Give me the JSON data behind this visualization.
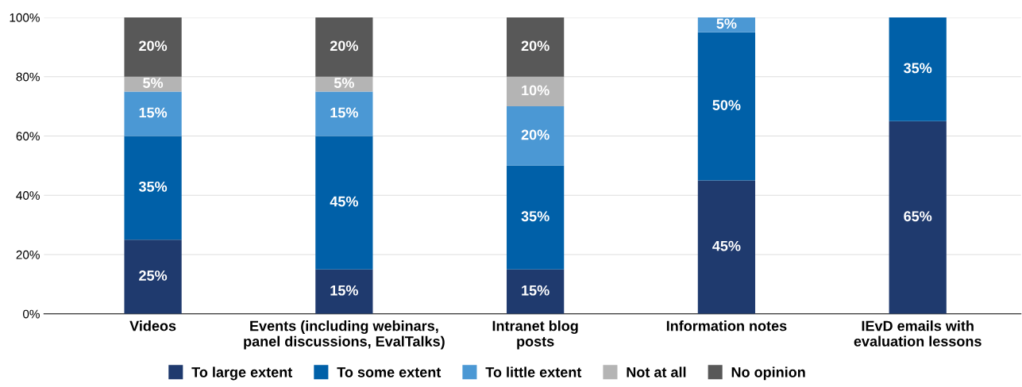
{
  "chart_data": {
    "type": "bar",
    "stacked": true,
    "categories": [
      "Videos",
      "Events (including webinars,\npanel discussions, EvalTalks)",
      "Intranet blog\nposts",
      "Information notes",
      "IEvD emails with\nevaluation lessons"
    ],
    "series": [
      {
        "name": "To large extent",
        "color": "#1f3a6e",
        "values": [
          25,
          15,
          15,
          45,
          65
        ],
        "value_labels": [
          "25%",
          "15%",
          "15%",
          "45%",
          "65%"
        ]
      },
      {
        "name": "To some extent",
        "color": "#0060a8",
        "values": [
          35,
          45,
          35,
          50,
          35
        ],
        "value_labels": [
          "35%",
          "45%",
          "35%",
          "50%",
          "35%"
        ]
      },
      {
        "name": "To little extent",
        "color": "#4b98d4",
        "values": [
          15,
          15,
          20,
          5,
          0
        ],
        "value_labels": [
          "15%",
          "15%",
          "20%",
          "5%",
          null
        ]
      },
      {
        "name": "Not at all",
        "color": "#b4b4b4",
        "values": [
          5,
          5,
          10,
          0,
          0
        ],
        "value_labels": [
          "5%",
          "5%",
          "10%",
          null,
          null
        ]
      },
      {
        "name": "No opinion",
        "color": "#585858",
        "values": [
          20,
          20,
          20,
          0,
          0
        ],
        "value_labels": [
          "20%",
          "20%",
          "20%",
          null,
          null
        ]
      }
    ],
    "ylim": [
      0,
      100
    ],
    "yticks": [
      {
        "value": 0,
        "label": "0%"
      },
      {
        "value": 20,
        "label": "20%"
      },
      {
        "value": 40,
        "label": "40%"
      },
      {
        "value": 60,
        "label": "60%"
      },
      {
        "value": 80,
        "label": "80%"
      },
      {
        "value": 100,
        "label": "100%"
      }
    ],
    "grid": "y",
    "legend": "bottom"
  }
}
